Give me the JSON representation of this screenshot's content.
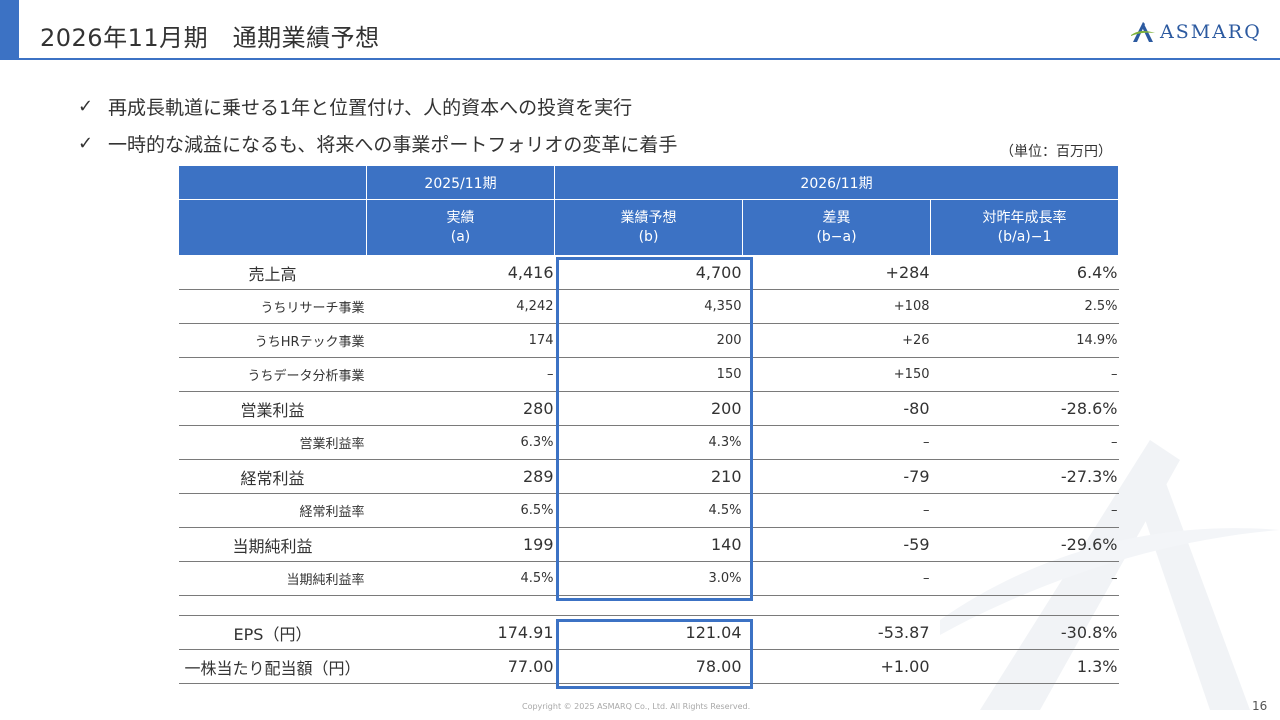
{
  "title": "2026年11月期　通期業績予想",
  "logo": {
    "text": "ASMARQ",
    "color": "#2c5aa0"
  },
  "bullets": [
    "再成長軌道に乗せる1年と位置付け、人的資本への投資を実行",
    "一時的な減益になるも、将来への事業ポートフォリオの変革に着手"
  ],
  "bullet_icon": "check-icon",
  "unit": "（単位：百万円）",
  "table": {
    "header_color": "#3c72c4",
    "period_prev": "2025/11期",
    "period_next": "2026/11期",
    "col_a": {
      "line1": "実績",
      "line2": "(a)"
    },
    "col_b": {
      "line1": "業績予想",
      "line2": "(b)"
    },
    "col_diff": {
      "line1": "差異",
      "line2": "(b−a)"
    },
    "col_growth": {
      "line1": "対昨年成長率",
      "line2": "(b/a)−1"
    },
    "rows": [
      {
        "label": "売上高",
        "a": "4,416",
        "b": "4,700",
        "diff": "+284",
        "growth": "6.4%"
      },
      {
        "label": "うちリサーチ事業",
        "a": "4,242",
        "b": "4,350",
        "diff": "+108",
        "growth": "2.5%"
      },
      {
        "label": "うちHRテック事業",
        "a": "174",
        "b": "200",
        "diff": "+26",
        "growth": "14.9%"
      },
      {
        "label": "うちデータ分析事業",
        "a": "–",
        "b": "150",
        "diff": "+150",
        "growth": "–"
      },
      {
        "label": "営業利益",
        "a": "280",
        "b": "200",
        "diff": "-80",
        "growth": "-28.6%"
      },
      {
        "label": "営業利益率",
        "a": "6.3%",
        "b": "4.3%",
        "diff": "–",
        "growth": "–"
      },
      {
        "label": "経常利益",
        "a": "289",
        "b": "210",
        "diff": "-79",
        "growth": "-27.3%"
      },
      {
        "label": "経常利益率",
        "a": "6.5%",
        "b": "4.5%",
        "diff": "–",
        "growth": "–"
      },
      {
        "label": "当期純利益",
        "a": "199",
        "b": "140",
        "diff": "-59",
        "growth": "-29.6%"
      },
      {
        "label": "当期純利益率",
        "a": "4.5%",
        "b": "3.0%",
        "diff": "–",
        "growth": "–"
      },
      {
        "label": "EPS（円）",
        "a": "174.91",
        "b": "121.04",
        "diff": "-53.87",
        "growth": "-30.8%"
      },
      {
        "label": "一株当たり配当額（円）",
        "a": "77.00",
        "b": "78.00",
        "diff": "+1.00",
        "growth": "1.3%"
      }
    ]
  },
  "copyright": "Copyright © 2025 ASMARQ Co., Ltd. All Rights Reserved.",
  "page_number": "16"
}
